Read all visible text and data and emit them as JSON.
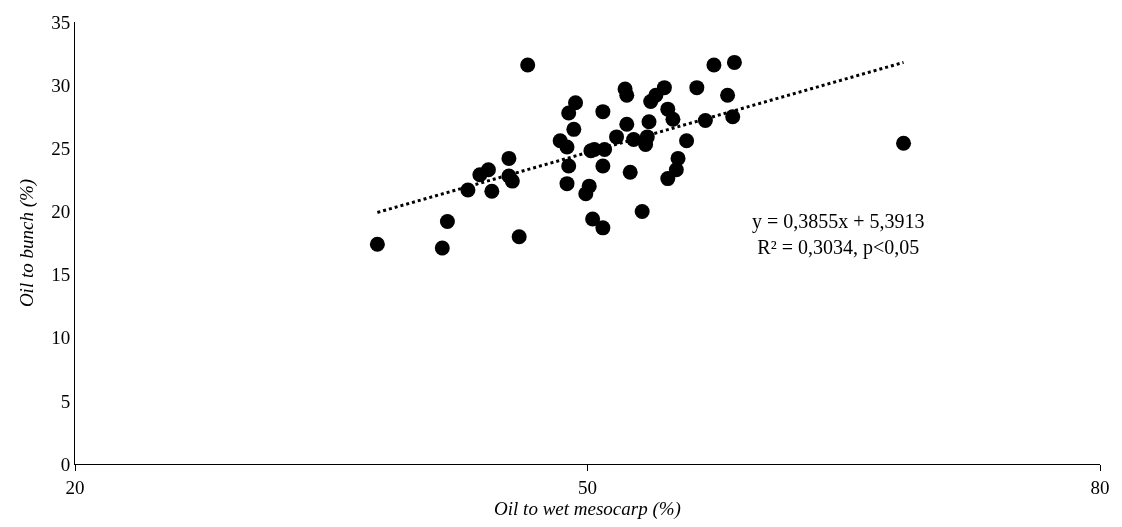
{
  "chart_data": {
    "type": "scatter",
    "xlabel": "Oil to wet mesocarp (%)",
    "ylabel": "Oil to bunch (%)",
    "xlim": [
      20,
      80
    ],
    "xticks": [
      20,
      50,
      80
    ],
    "ylim": [
      0,
      35
    ],
    "yticks": [
      0,
      5,
      10,
      15,
      20,
      25,
      30,
      35
    ],
    "grid": false,
    "annotations": [
      "y = 0,3855x + 5,3913\nR² = 0,3034, p<0,05"
    ],
    "series": [
      {
        "color": "#000000",
        "marker": "circle",
        "x": [
          46.5,
          49.3,
          48.9,
          49.2,
          48.4,
          48.8,
          50.2,
          48.9,
          48.8,
          50.1,
          49.9,
          45.4,
          44.2,
          43.7,
          45.4,
          45.6,
          43.0,
          44.4,
          41.8,
          46.0,
          41.5,
          37.7,
          50.3,
          57.4,
          58.6,
          52.2,
          52.3,
          54.5,
          54.0,
          53.7,
          56.4,
          58.2,
          50.9,
          54.7,
          55.0,
          53.6,
          52.3,
          56.9,
          58.5,
          51.7,
          52.7,
          53.5,
          53.4,
          55.8,
          50.4,
          51.0,
          50.9,
          52.5,
          55.3,
          55.2,
          54.7,
          53.2,
          50.9,
          68.5
        ],
        "values": [
          31.6,
          28.6,
          27.8,
          26.5,
          25.6,
          25.1,
          24.8,
          23.6,
          22.2,
          22.0,
          21.4,
          24.2,
          23.3,
          22.9,
          22.8,
          22.4,
          21.7,
          21.6,
          19.2,
          18.0,
          17.1,
          17.4,
          19.4,
          31.6,
          31.8,
          29.7,
          29.2,
          29.8,
          29.2,
          28.7,
          29.8,
          29.2,
          27.9,
          28.1,
          27.3,
          27.1,
          26.9,
          27.2,
          27.5,
          25.9,
          25.7,
          25.9,
          25.3,
          25.6,
          24.9,
          24.9,
          23.6,
          23.1,
          24.2,
          23.3,
          22.6,
          20.0,
          18.7,
          25.4
        ]
      },
      {
        "type": "line",
        "color": "#000000",
        "marker": "none",
        "line_style": "dotted",
        "x": [
          37.7,
          68.5
        ],
        "values": [
          19.92,
          31.8
        ]
      }
    ]
  }
}
